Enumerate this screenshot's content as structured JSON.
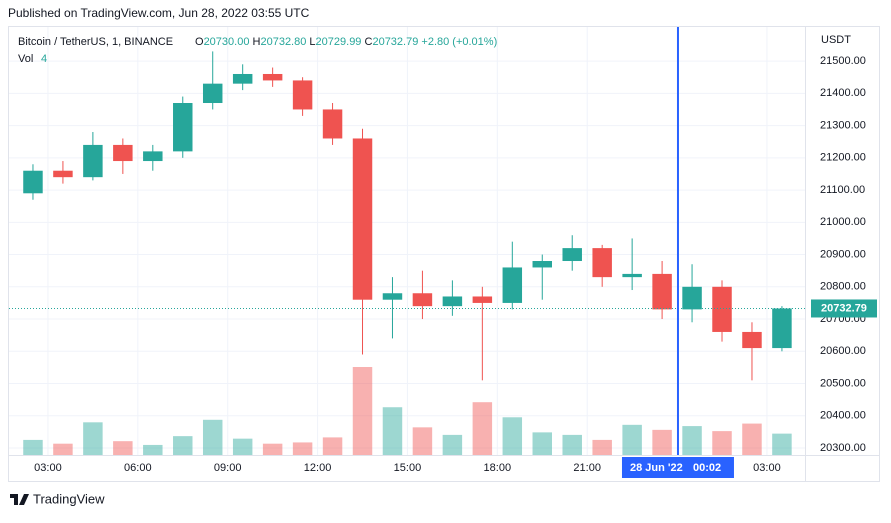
{
  "header": {
    "published": "Published on TradingView.com, Jun 28, 2022 03:55 UTC"
  },
  "footer": {
    "brand": "TradingView"
  },
  "chart_data": {
    "type": "candlestick",
    "title": "Bitcoin / TetherUS, 1, BINANCE",
    "ohlc_legend": [
      {
        "label": "O",
        "value": "20730.00"
      },
      {
        "label": "H",
        "value": "20732.80"
      },
      {
        "label": "L",
        "value": "20729.99"
      },
      {
        "label": "C",
        "value": "20732.79"
      }
    ],
    "change": "+2.80 (+0.01%)",
    "volume_label": "Vol",
    "volume_value": "4",
    "currency": "USDT",
    "up_color": "#26a69a",
    "down_color": "#ef5350",
    "x": [
      2,
      3,
      4,
      5,
      6,
      7,
      8,
      9,
      10,
      11,
      12,
      13,
      14,
      15,
      16,
      17,
      18,
      19,
      20,
      21,
      22,
      23,
      24,
      25,
      26,
      27
    ],
    "open": [
      21090,
      21160,
      21140,
      21240,
      21190,
      21220,
      21370,
      21430,
      21460,
      21440,
      21350,
      21260,
      20760,
      20780,
      20740,
      20770,
      20750,
      20860,
      20880,
      20920,
      20830,
      20840,
      20730,
      20800,
      20660,
      20610
    ],
    "high": [
      21180,
      21190,
      21280,
      21260,
      21240,
      21390,
      21530,
      21490,
      21480,
      21450,
      21370,
      21290,
      20830,
      20850,
      20820,
      20800,
      20940,
      20900,
      20960,
      20930,
      20950,
      20880,
      20870,
      20820,
      20690,
      20740
    ],
    "low": [
      21070,
      21120,
      21130,
      21150,
      21160,
      21200,
      21350,
      21410,
      21420,
      21330,
      21240,
      20590,
      20640,
      20700,
      20710,
      20510,
      20730,
      20760,
      20850,
      20800,
      20790,
      20700,
      20690,
      20630,
      20510,
      20600
    ],
    "close": [
      21160,
      21140,
      21240,
      21190,
      21220,
      21370,
      21430,
      21460,
      21440,
      21350,
      21260,
      20760,
      20780,
      20740,
      20770,
      20750,
      20860,
      20880,
      20920,
      20830,
      20840,
      20730,
      20800,
      20660,
      20610,
      20732.79
    ],
    "volume": [
      120,
      90,
      260,
      110,
      80,
      150,
      280,
      130,
      90,
      100,
      140,
      700,
      380,
      220,
      160,
      420,
      300,
      180,
      160,
      120,
      240,
      200,
      230,
      190,
      250,
      170
    ],
    "xlim": [
      1.7,
      28.27
    ],
    "xticks": [
      {
        "value": 3,
        "label": "03:00"
      },
      {
        "value": 6,
        "label": "06:00"
      },
      {
        "value": 9,
        "label": "09:00"
      },
      {
        "value": 12,
        "label": "12:00"
      },
      {
        "value": 15,
        "label": "15:00"
      },
      {
        "value": 18,
        "label": "18:00"
      },
      {
        "value": 21,
        "label": "21:00"
      },
      {
        "value": 27,
        "label": "03:00"
      }
    ],
    "ylim": [
      20278.4,
      21605.7
    ],
    "yticks": [
      {
        "value": 20300,
        "label": "20300.00"
      },
      {
        "value": 20400,
        "label": "20400.00"
      },
      {
        "value": 20500,
        "label": "20500.00"
      },
      {
        "value": 20600,
        "label": "20600.00"
      },
      {
        "value": 20700,
        "label": "20700.00"
      },
      {
        "value": 20800,
        "label": "20800.00"
      },
      {
        "value": 20900,
        "label": "20900.00"
      },
      {
        "value": 21000,
        "label": "21000.00"
      },
      {
        "value": 21100,
        "label": "21100.00"
      },
      {
        "value": 21200,
        "label": "21200.00"
      },
      {
        "value": 21300,
        "label": "21300.00"
      },
      {
        "value": 21400,
        "label": "21400.00"
      },
      {
        "value": 21500,
        "label": "21500.00"
      }
    ],
    "grid": true,
    "last_price": 20732.79,
    "crosshair": {
      "x": 24.03,
      "date": "28 Jun '22",
      "time": "00:02",
      "color": "#2962ff"
    }
  }
}
